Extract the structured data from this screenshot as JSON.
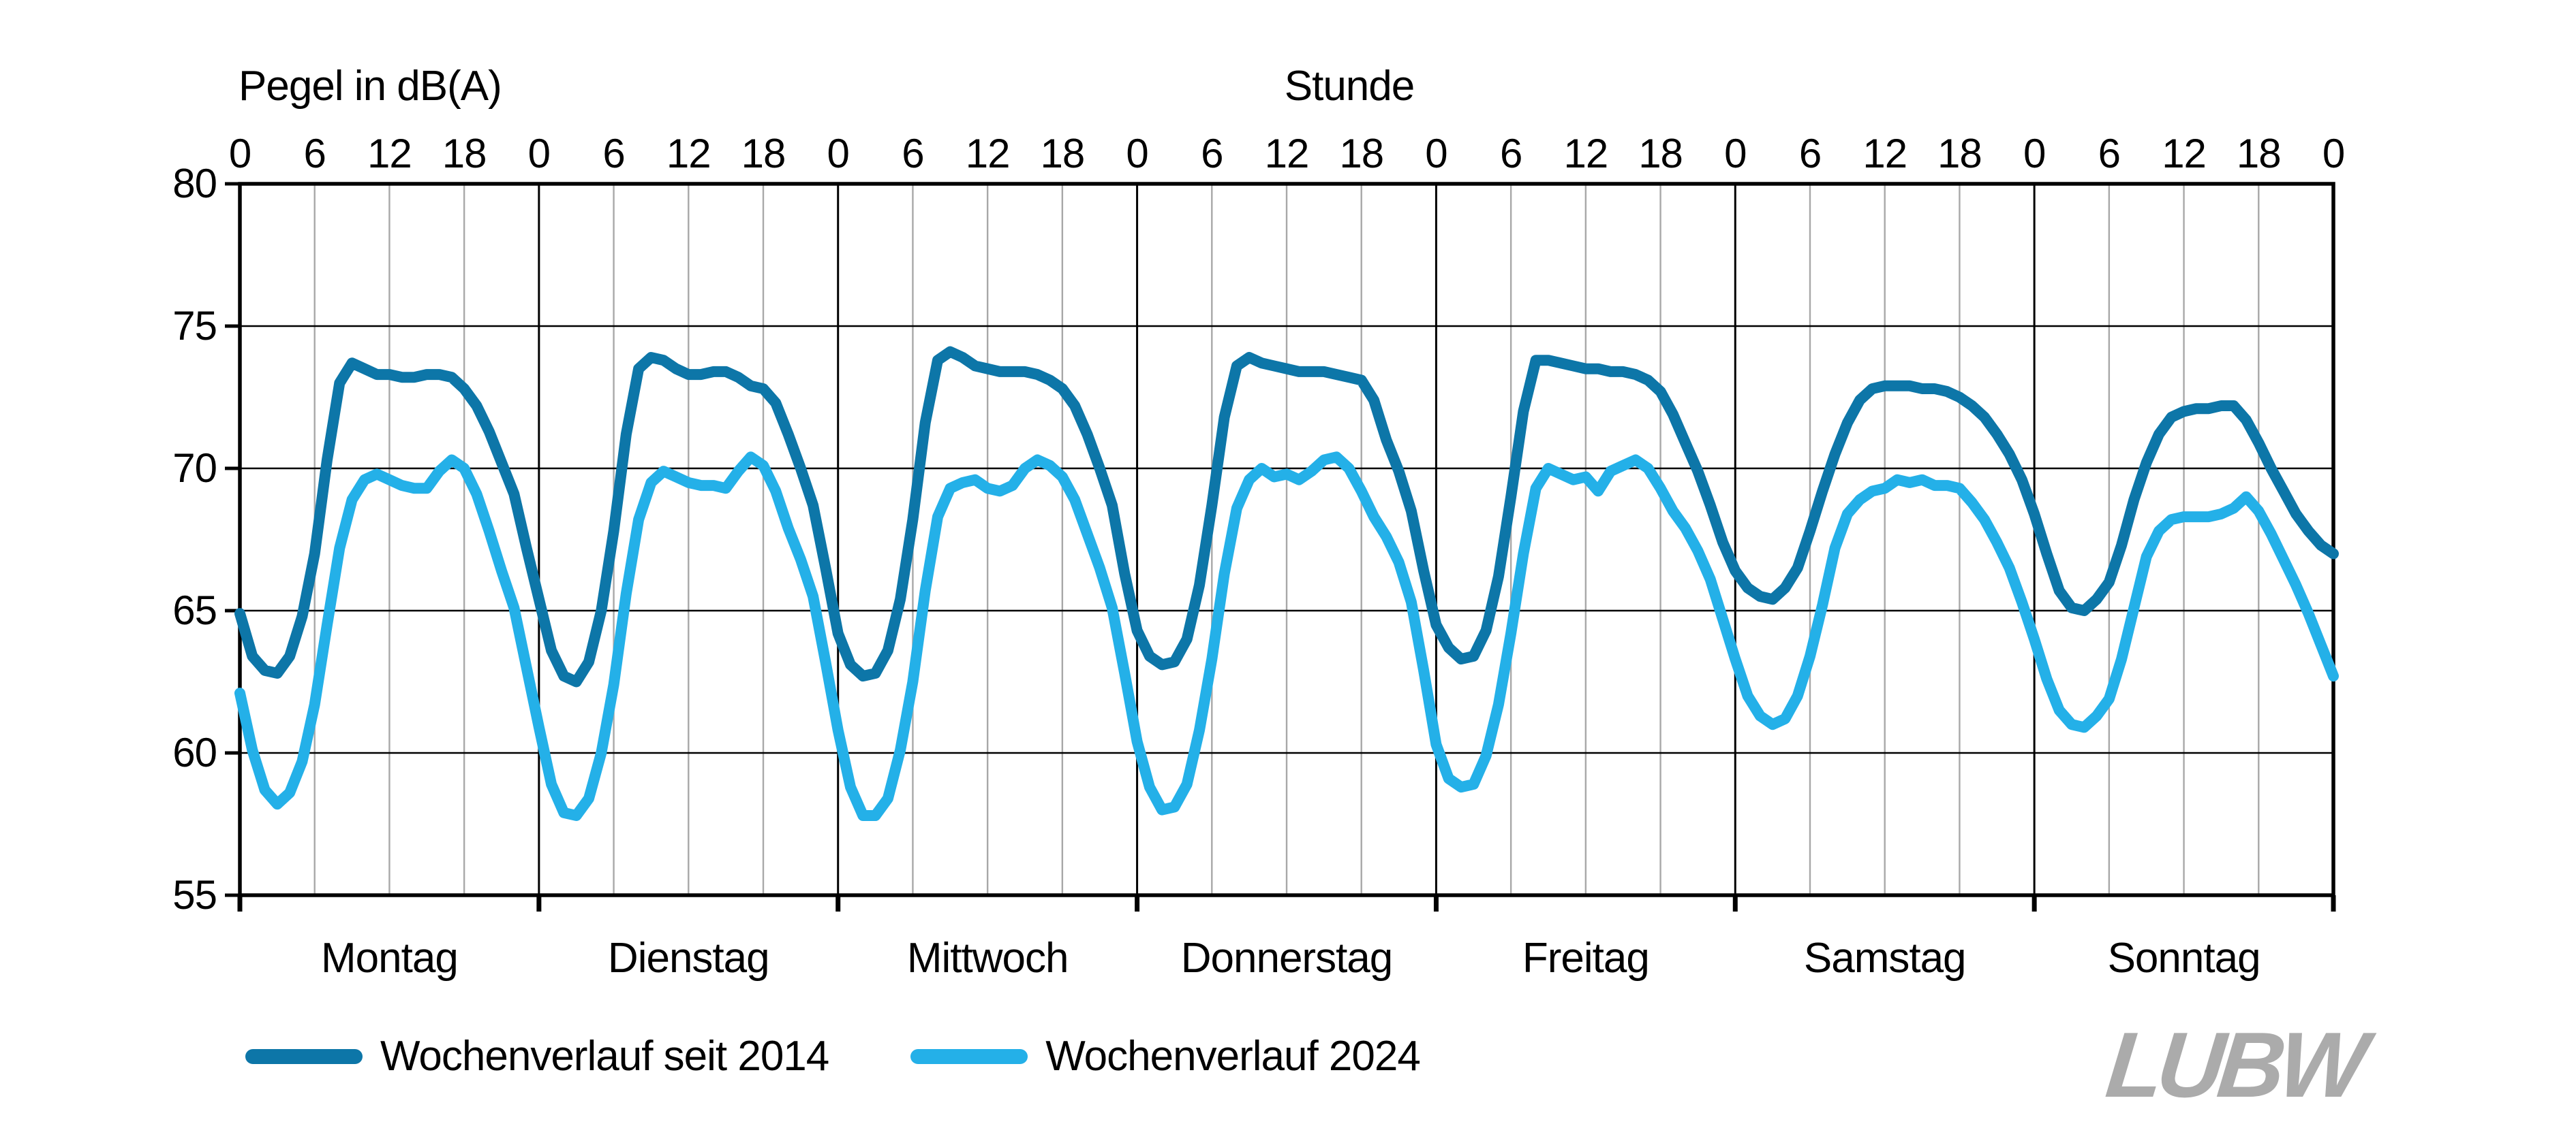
{
  "header": {
    "y_axis_title": "Pegel in dB(A)",
    "x_axis_title": "Stunde"
  },
  "logo": {
    "text": "LUBW",
    "color": "#ababab"
  },
  "chart_data": {
    "type": "line",
    "title": "",
    "xlabel": "Stunde",
    "ylabel": "Pegel in dB(A)",
    "ylim": [
      55,
      80
    ],
    "y_ticks": [
      80,
      75,
      70,
      65,
      60,
      55
    ],
    "y_gridlines": [
      75,
      70,
      65,
      60
    ],
    "days": [
      "Montag",
      "Dienstag",
      "Mittwoch",
      "Donnerstag",
      "Freitag",
      "Samstag",
      "Sonntag"
    ],
    "hours_per_day": 24,
    "hour_tick_labels": [
      0,
      6,
      12,
      18
    ],
    "closing_tick_label": "0",
    "grid": {
      "horizontal": "on",
      "vertical_minor": "on",
      "vertical_day_boundaries": "on"
    },
    "legend_position": "bottom-left",
    "colors": {
      "horizontal_grid": "#000000",
      "vertical_minor_grid": "#a8a8a8",
      "day_boundary_grid": "#000000",
      "frame": "#000000"
    },
    "series": [
      {
        "name": "Wochenverlauf seit 2014",
        "color": "#0d76a8",
        "values_by_day": [
          [
            64.9,
            63.4,
            62.9,
            62.8,
            63.4,
            64.8,
            67.0,
            70.3,
            73.0,
            73.7,
            73.5,
            73.3,
            73.3,
            73.2,
            73.2,
            73.3,
            73.3,
            73.2,
            72.8,
            72.2,
            71.3,
            70.2,
            69.1,
            67.2
          ],
          [
            65.4,
            63.6,
            62.7,
            62.5,
            63.2,
            65.0,
            67.8,
            71.2,
            73.5,
            73.9,
            73.8,
            73.5,
            73.3,
            73.3,
            73.4,
            73.4,
            73.2,
            72.9,
            72.8,
            72.3,
            71.2,
            70.0,
            68.7,
            66.5
          ],
          [
            64.2,
            63.1,
            62.7,
            62.8,
            63.6,
            65.4,
            68.2,
            71.6,
            73.8,
            74.1,
            73.9,
            73.6,
            73.5,
            73.4,
            73.4,
            73.4,
            73.3,
            73.1,
            72.8,
            72.2,
            71.2,
            70.0,
            68.7,
            66.3
          ],
          [
            64.3,
            63.4,
            63.1,
            63.2,
            64.0,
            65.9,
            68.7,
            71.8,
            73.6,
            73.9,
            73.7,
            73.6,
            73.5,
            73.4,
            73.4,
            73.4,
            73.3,
            73.2,
            73.1,
            72.4,
            71.0,
            69.9,
            68.5,
            66.4
          ],
          [
            64.5,
            63.7,
            63.3,
            63.4,
            64.3,
            66.2,
            69.0,
            72.0,
            73.8,
            73.8,
            73.7,
            73.6,
            73.5,
            73.5,
            73.4,
            73.4,
            73.3,
            73.1,
            72.7,
            71.9,
            70.9,
            69.9,
            68.7,
            67.4
          ],
          [
            66.4,
            65.8,
            65.5,
            65.4,
            65.8,
            66.5,
            67.8,
            69.2,
            70.5,
            71.6,
            72.4,
            72.8,
            72.9,
            72.9,
            72.9,
            72.8,
            72.8,
            72.7,
            72.5,
            72.2,
            71.8,
            71.2,
            70.5,
            69.6
          ],
          [
            68.4,
            67.0,
            65.7,
            65.1,
            65.0,
            65.4,
            66.0,
            67.3,
            68.9,
            70.2,
            71.2,
            71.8,
            72.0,
            72.1,
            72.1,
            72.2,
            72.2,
            71.7,
            70.9,
            70.0,
            69.2,
            68.4,
            67.8,
            67.3
          ]
        ],
        "closing_value": 67.0
      },
      {
        "name": "Wochenverlauf 2024",
        "color": "#24b0e8",
        "values_by_day": [
          [
            62.1,
            60.1,
            58.7,
            58.2,
            58.6,
            59.7,
            61.7,
            64.5,
            67.2,
            68.9,
            69.6,
            69.8,
            69.6,
            69.4,
            69.3,
            69.3,
            69.9,
            70.3,
            70.0,
            69.1,
            67.8,
            66.4,
            65.1,
            63.0
          ],
          [
            60.9,
            58.9,
            57.9,
            57.8,
            58.4,
            60.0,
            62.4,
            65.6,
            68.2,
            69.5,
            69.9,
            69.7,
            69.5,
            69.4,
            69.4,
            69.3,
            69.9,
            70.4,
            70.1,
            69.2,
            67.9,
            66.8,
            65.5,
            63.2
          ],
          [
            60.8,
            58.8,
            57.8,
            57.8,
            58.4,
            60.1,
            62.5,
            65.7,
            68.3,
            69.3,
            69.5,
            69.6,
            69.3,
            69.2,
            69.4,
            70.0,
            70.3,
            70.1,
            69.7,
            68.9,
            67.7,
            66.5,
            65.1,
            62.8
          ],
          [
            60.4,
            58.8,
            58.0,
            58.1,
            58.9,
            60.8,
            63.3,
            66.3,
            68.6,
            69.6,
            70.0,
            69.7,
            69.8,
            69.6,
            69.9,
            70.3,
            70.4,
            70.0,
            69.2,
            68.3,
            67.6,
            66.7,
            65.3,
            62.9
          ],
          [
            60.3,
            59.1,
            58.8,
            58.9,
            59.9,
            61.7,
            64.2,
            67.0,
            69.3,
            70.0,
            69.8,
            69.6,
            69.7,
            69.2,
            69.9,
            70.1,
            70.3,
            70.0,
            69.3,
            68.5,
            67.9,
            67.1,
            66.1,
            64.7
          ],
          [
            63.3,
            62.0,
            61.3,
            61.0,
            61.2,
            62.0,
            63.4,
            65.2,
            67.2,
            68.4,
            68.9,
            69.2,
            69.3,
            69.6,
            69.5,
            69.6,
            69.4,
            69.4,
            69.3,
            68.8,
            68.2,
            67.4,
            66.5,
            65.3
          ],
          [
            64.0,
            62.6,
            61.5,
            61.0,
            60.9,
            61.3,
            61.9,
            63.3,
            65.1,
            66.9,
            67.8,
            68.2,
            68.3,
            68.3,
            68.3,
            68.4,
            68.6,
            69.0,
            68.5,
            67.7,
            66.8,
            65.9,
            64.9,
            63.8
          ]
        ],
        "closing_value": 62.7
      }
    ]
  }
}
